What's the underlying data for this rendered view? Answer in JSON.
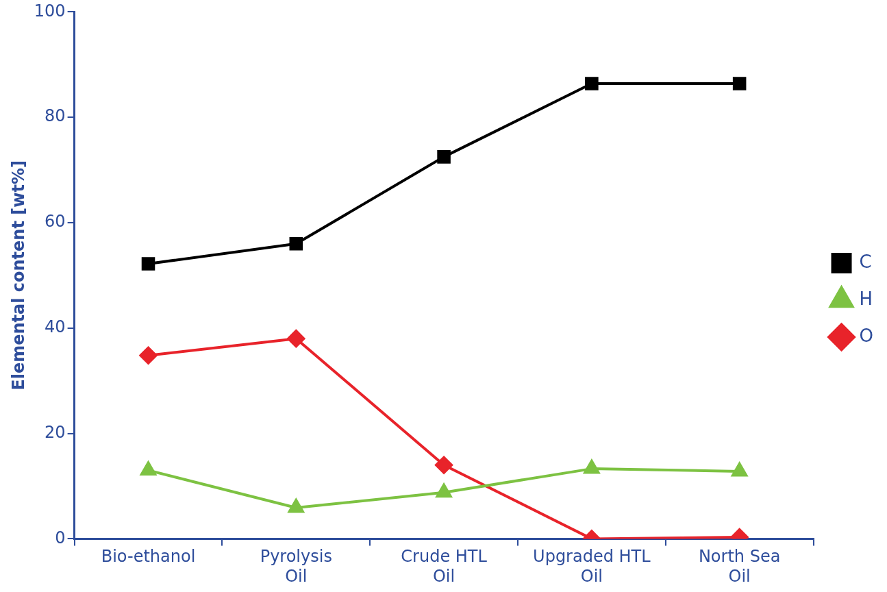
{
  "chart_data": {
    "type": "line",
    "ylabel": "Elemental content [wt%]",
    "categories": [
      "Bio-ethanol",
      "Pyrolysis Oil",
      "Crude HTL Oil",
      "Upgraded HTL Oil",
      "North Sea Oil"
    ],
    "series": [
      {
        "name": "C",
        "color": "#000000",
        "marker": "square",
        "values": [
          52.2,
          56.0,
          72.5,
          86.4,
          86.4
        ]
      },
      {
        "name": "H",
        "color": "#7dc242",
        "marker": "triangle",
        "values": [
          13.0,
          5.9,
          8.8,
          13.3,
          12.8
        ]
      },
      {
        "name": "O",
        "color": "#e8232a",
        "marker": "diamond",
        "values": [
          34.8,
          38.0,
          14.0,
          0,
          0.3
        ]
      }
    ],
    "ylim": [
      0,
      100
    ],
    "yticks": [
      0,
      20,
      40,
      60,
      80,
      100
    ],
    "grid": false,
    "legend": "right",
    "line_style": "solid"
  }
}
